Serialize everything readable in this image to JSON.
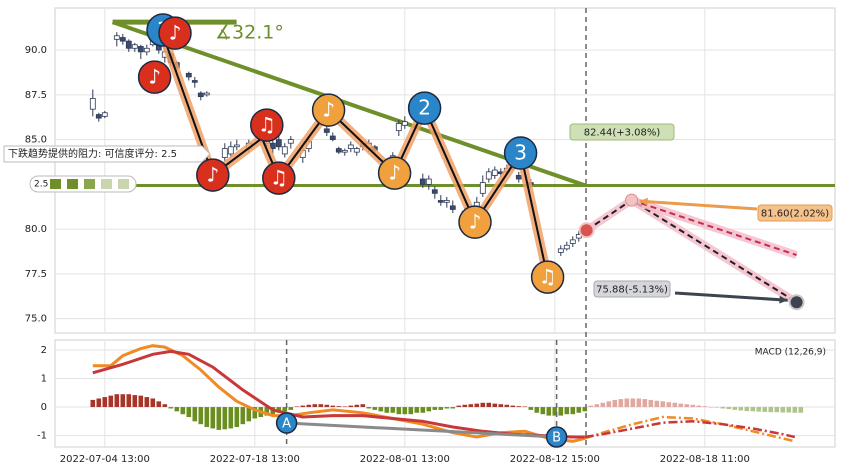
{
  "chart_data": [
    {
      "type": "candlestick",
      "x": [
        0,
        1,
        2,
        4,
        5,
        6,
        7,
        8,
        9,
        10,
        11,
        12,
        13,
        14,
        16,
        17,
        18,
        19,
        22,
        23,
        24,
        26,
        27,
        28,
        29,
        30,
        31,
        32,
        33,
        35,
        36,
        39,
        40,
        41,
        42,
        43,
        44,
        45,
        46,
        47,
        50,
        51,
        52,
        55,
        56,
        57,
        58,
        59,
        60,
        62,
        64,
        65,
        66,
        67,
        68,
        69,
        70,
        71,
        73,
        78,
        79,
        80,
        81
      ],
      "open": [
        86.7,
        86.4,
        86.3,
        90.6,
        90.7,
        90.5,
        90.1,
        90.2,
        89.9,
        90.3,
        90.4,
        89.6,
        89.8,
        89.3,
        88.7,
        88.3,
        87.6,
        87.5,
        84.0,
        84.2,
        84.6,
        84.5,
        85.5,
        85.3,
        84.8,
        84.8,
        85.0,
        84.2,
        84.8,
        84.0,
        84.5,
        85.6,
        85.2,
        84.5,
        84.3,
        84.5,
        84.3,
        84.8,
        84.5,
        84.6,
        83.9,
        85.5,
        85.8,
        82.8,
        82.5,
        82.2,
        81.6,
        81.5,
        81.3,
        81.0,
        81.2,
        82.0,
        82.8,
        83.0,
        83.2,
        83.2,
        83.6,
        83.0,
        82.6,
        78.7,
        78.9,
        79.2,
        79.5
      ],
      "close": [
        87.3,
        86.2,
        86.5,
        90.8,
        90.5,
        90.1,
        90.3,
        89.9,
        90.1,
        90.6,
        90.0,
        89.9,
        89.3,
        89.0,
        88.5,
        88.2,
        87.4,
        87.6,
        84.5,
        84.6,
        84.7,
        84.8,
        86.0,
        85.0,
        85.1,
        84.5,
        84.6,
        84.6,
        85.0,
        84.4,
        84.9,
        85.4,
        85.0,
        84.3,
        84.4,
        84.7,
        84.5,
        84.6,
        84.8,
        84.4,
        84.1,
        85.9,
        86.0,
        82.5,
        82.8,
        82.0,
        81.5,
        81.6,
        81.1,
        80.8,
        81.5,
        82.6,
        83.2,
        83.3,
        83.1,
        83.4,
        83.5,
        82.8,
        82.5,
        78.9,
        79.1,
        79.4,
        79.7
      ],
      "high": [
        87.8,
        86.5,
        86.6,
        91.0,
        90.9,
        90.6,
        90.4,
        90.3,
        90.3,
        90.8,
        90.5,
        90.2,
        89.9,
        89.4,
        88.8,
        88.5,
        87.7,
        87.7,
        84.8,
        84.9,
        85.0,
        85.0,
        86.2,
        85.6,
        85.3,
        85.0,
        85.2,
        84.8,
        85.2,
        84.6,
        85.2,
        85.8,
        85.4,
        84.6,
        84.5,
        84.9,
        84.6,
        84.9,
        85.0,
        84.7,
        84.3,
        86.1,
        86.3,
        83.1,
        83.0,
        82.4,
        81.9,
        81.8,
        81.6,
        81.2,
        81.8,
        83.0,
        83.4,
        83.5,
        83.4,
        83.6,
        83.8,
        83.2,
        82.8,
        79.1,
        79.3,
        79.6,
        79.9
      ],
      "low": [
        86.3,
        86.0,
        86.2,
        90.2,
        90.3,
        89.9,
        89.9,
        89.5,
        89.7,
        90.2,
        89.8,
        89.3,
        89.1,
        88.8,
        88.3,
        87.9,
        87.2,
        87.4,
        83.8,
        84.0,
        84.4,
        84.3,
        85.3,
        84.8,
        84.6,
        84.2,
        84.4,
        84.0,
        84.5,
        83.7,
        84.3,
        85.2,
        84.9,
        84.2,
        84.1,
        84.3,
        84.1,
        84.4,
        84.3,
        84.2,
        83.7,
        85.2,
        85.6,
        82.3,
        82.2,
        81.7,
        81.3,
        81.2,
        80.9,
        80.6,
        81.0,
        81.8,
        82.6,
        82.8,
        82.9,
        83.0,
        83.3,
        82.6,
        82.3,
        78.5,
        78.8,
        79.0,
        79.3
      ],
      "up_color": "#ffffff",
      "down_color": "#3d4b6e",
      "outline_color": "#2e3a55",
      "xlim": [
        -6.3,
        123.7
      ],
      "ylim": [
        74.2,
        92.35
      ],
      "yticks": [
        {
          "value": 90,
          "label": "90.0"
        },
        {
          "value": 87.5,
          "label": "87.5"
        },
        {
          "value": 85,
          "label": "85.0"
        },
        {
          "value": 80,
          "label": "80.0"
        },
        {
          "value": 77.5,
          "label": "77.5"
        },
        {
          "value": 75,
          "label": "75.0"
        }
      ],
      "grid": true,
      "trend_line": {
        "x": [
          3.3,
          82
        ],
        "values": [
          91.56,
          82.45
        ],
        "color": "#6e8f2a"
      },
      "angle_label": "∡32.1°",
      "support_line": {
        "value": 82.44,
        "color": "#6e8f2a"
      },
      "resistance_note": "下跌趋势提供的阻力: 可信度评分: 2.5",
      "score_badge": "2.5",
      "zigzag": {
        "x": [
          12,
          20,
          28.2,
          31,
          39.3,
          50.3,
          55.3,
          63.7,
          71.3,
          75.8
        ],
        "values": [
          90.56,
          83.02,
          85.08,
          82.85,
          86.65,
          83.13,
          86.76,
          80.39,
          84.25,
          77.32
        ],
        "color": "#111111",
        "highlight_color": "#f0a066"
      },
      "markers": [
        {
          "label": "1",
          "x": 11.7,
          "value": 91.12,
          "color": "#2a86c9"
        },
        {
          "label": "♪",
          "x": 13.7,
          "value": 90.95,
          "color": "#d9301e"
        },
        {
          "label": "♪",
          "x": 10.3,
          "value": 88.49,
          "color": "#d9301e"
        },
        {
          "label": "♪",
          "x": 20,
          "value": 83.02,
          "color": "#d9301e"
        },
        {
          "label": "♫",
          "x": 29,
          "value": 85.81,
          "color": "#d9301e"
        },
        {
          "label": "♫",
          "x": 31,
          "value": 82.85,
          "color": "#d9301e"
        },
        {
          "label": "♪",
          "x": 39.3,
          "value": 86.65,
          "color": "#f0a03c"
        },
        {
          "label": "♪",
          "x": 50.3,
          "value": 83.13,
          "color": "#f0a03c"
        },
        {
          "label": "2",
          "x": 55.3,
          "value": 86.76,
          "color": "#2a86c9"
        },
        {
          "label": "♪",
          "x": 63.7,
          "value": 80.39,
          "color": "#f0a03c"
        },
        {
          "label": "3",
          "x": 71.3,
          "value": 84.25,
          "color": "#2a86c9"
        },
        {
          "label": "♫",
          "x": 75.8,
          "value": 77.32,
          "color": "#f0a03c"
        }
      ],
      "current": {
        "x": 82.3,
        "value": 79.94,
        "color": "#d9534f"
      },
      "forecast_lines": [
        {
          "x": [
            82.3,
            89.8,
            117.3
          ],
          "values": [
            79.94,
            81.62,
            75.92
          ],
          "color": "#222222",
          "highlight_color": "#f4b8c8"
        },
        {
          "x": [
            89.8,
            117.3
          ],
          "values": [
            81.62,
            78.55
          ],
          "color": "#c0304a",
          "highlight_color": "#f4b8c8"
        }
      ],
      "annotations": [
        "82.44(+3.08%)",
        "81.60(2.02%)",
        "75.88(-5.13%)"
      ],
      "vline_x": 82.2
    },
    {
      "type": "macd",
      "title": "MACD (12,26,9)",
      "histogram": [
        0.25,
        0.3,
        0.35,
        0.4,
        0.45,
        0.45,
        0.45,
        0.42,
        0.4,
        0.35,
        0.3,
        0.2,
        0.1,
        -0.05,
        -0.15,
        -0.25,
        -0.35,
        -0.5,
        -0.6,
        -0.7,
        -0.75,
        -0.8,
        -0.78,
        -0.75,
        -0.7,
        -0.6,
        -0.5,
        -0.4,
        -0.35,
        -0.3,
        -0.25,
        -0.2,
        -0.15,
        -0.1,
        0.02,
        0.05,
        0.08,
        0.1,
        0.1,
        0.08,
        0.05,
        0.03,
        0.02,
        0.05,
        0.08,
        0.1,
        -0.05,
        -0.1,
        -0.15,
        -0.2,
        -0.2,
        -0.25,
        -0.25,
        -0.25,
        -0.2,
        -0.2,
        -0.15,
        -0.1,
        -0.1,
        -0.05,
        -0.05,
        0.05,
        0.08,
        0.1,
        0.12,
        0.15,
        0.15,
        0.12,
        0.1,
        0.08,
        0.05,
        0.03,
        0.02,
        -0.1,
        -0.2,
        -0.25,
        -0.3,
        -0.3,
        -0.3,
        -0.25,
        -0.25,
        -0.2,
        -0.15
      ],
      "forecast_histogram": [
        0.05,
        0.1,
        0.15,
        0.2,
        0.25,
        0.28,
        0.3,
        0.3,
        0.3,
        0.28,
        0.25,
        0.22,
        0.2,
        0.17,
        0.15,
        0.12,
        0.1,
        0.08,
        0.05,
        0.03,
        0.0,
        -0.02,
        -0.05,
        -0.07,
        -0.1,
        -0.12,
        -0.14,
        -0.15,
        -0.16,
        -0.17,
        -0.18,
        -0.18,
        -0.19,
        -0.19,
        -0.2,
        -0.2
      ],
      "up_color": "#a8352a",
      "down_color": "#6b8e23",
      "forecast_up_color": "#e0a8a0",
      "forecast_down_color": "#aec48a",
      "dif": {
        "x": [
          0,
          3,
          5,
          8,
          10,
          12,
          15,
          18,
          21,
          24,
          27,
          30,
          33,
          36,
          40,
          45,
          50,
          55,
          60,
          64,
          68,
          72,
          76,
          80,
          82
        ],
        "values": [
          1.45,
          1.45,
          1.8,
          2.05,
          2.15,
          2.1,
          1.8,
          1.3,
          0.7,
          0.2,
          -0.1,
          -0.3,
          -0.3,
          -0.2,
          -0.1,
          -0.2,
          -0.4,
          -0.6,
          -0.9,
          -1.05,
          -0.9,
          -0.85,
          -1.1,
          -1.2,
          -1.1
        ],
        "color": "#f08a24"
      },
      "dea": {
        "x": [
          0,
          5,
          10,
          13,
          16,
          20,
          25,
          30,
          35,
          40,
          45,
          50,
          55,
          60,
          65,
          70,
          75,
          80,
          82
        ],
        "values": [
          1.2,
          1.5,
          1.85,
          1.95,
          1.85,
          1.4,
          0.6,
          -0.1,
          -0.35,
          -0.3,
          -0.3,
          -0.4,
          -0.5,
          -0.7,
          -0.85,
          -0.95,
          -1.0,
          -1.05,
          -1.05
        ],
        "color": "#c8373a"
      },
      "forecast_dif": {
        "x": [
          82,
          85,
          90,
          95,
          100,
          105,
          110,
          115,
          117
        ],
        "values": [
          -1.1,
          -0.9,
          -0.6,
          -0.35,
          -0.4,
          -0.6,
          -0.85,
          -1.1,
          -1.2
        ],
        "color": "#f08a24"
      },
      "forecast_dea": {
        "x": [
          82,
          85,
          90,
          95,
          100,
          105,
          110,
          115,
          117
        ],
        "values": [
          -1.05,
          -0.95,
          -0.75,
          -0.55,
          -0.5,
          -0.6,
          -0.75,
          -0.95,
          -1.05
        ],
        "color": "#c8373a"
      },
      "markers": [
        {
          "label": "A",
          "x": 32.3,
          "value": -0.56,
          "color": "#2a86c9"
        },
        {
          "label": "B",
          "x": 77.3,
          "value": -1.05,
          "color": "#2a86c9"
        }
      ],
      "divergence_color": "#8a8a8a",
      "xlim": [
        -6.3,
        123.7
      ],
      "xticks": [
        {
          "value": 2,
          "label": "2022-07-04 13:00"
        },
        {
          "value": 27,
          "label": "2022-07-18 13:00"
        },
        {
          "value": 52,
          "label": "2022-08-01 13:00"
        },
        {
          "value": 77,
          "label": "2022-08-12 15:00"
        },
        {
          "value": 102,
          "label": "2022-08-18 11:00"
        }
      ],
      "ylim": [
        -1.4,
        2.35
      ],
      "yticks": [
        2,
        1,
        0,
        -1
      ],
      "grid": true
    }
  ]
}
